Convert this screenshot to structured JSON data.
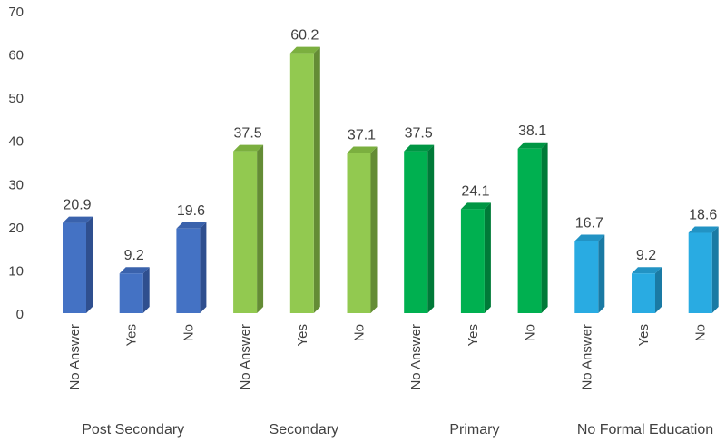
{
  "chart_data": {
    "type": "bar",
    "title": "",
    "xlabel": "",
    "ylabel": "",
    "ylim": [
      0,
      70
    ],
    "y_ticks": [
      "0",
      "10",
      "20",
      "30",
      "40",
      "50",
      "60",
      "70"
    ],
    "grid": false,
    "bar_style": "3d",
    "groups": [
      {
        "name": "Post Secondary",
        "color": "#4472C4",
        "side_color": "#2F4F8F",
        "top_color": "#3A62AC",
        "categories": [
          "No Answer",
          "Yes",
          "No"
        ],
        "values": [
          20.9,
          9.2,
          19.6
        ],
        "labels": [
          "20.9",
          "9.2",
          "19.6"
        ]
      },
      {
        "name": "Secondary",
        "color": "#92C950",
        "side_color": "#648C35",
        "top_color": "#7BAF3F",
        "categories": [
          "No Answer",
          "Yes",
          "No"
        ],
        "values": [
          37.5,
          60.2,
          37.1
        ],
        "labels": [
          "37.5",
          "60.2",
          "37.1"
        ]
      },
      {
        "name": "Primary",
        "color": "#00B050",
        "side_color": "#007A38",
        "top_color": "#009644",
        "categories": [
          "No Answer",
          "Yes",
          "No"
        ],
        "values": [
          37.5,
          24.1,
          38.1
        ],
        "labels": [
          "37.5",
          "24.1",
          "38.1"
        ]
      },
      {
        "name": "No Formal Education",
        "color": "#29ABE2",
        "side_color": "#1A7AA4",
        "top_color": "#2293C4",
        "categories": [
          "No Answer",
          "Yes",
          "No"
        ],
        "values": [
          16.7,
          9.2,
          18.6
        ],
        "labels": [
          "16.7",
          "9.2",
          "18.6"
        ]
      }
    ]
  }
}
